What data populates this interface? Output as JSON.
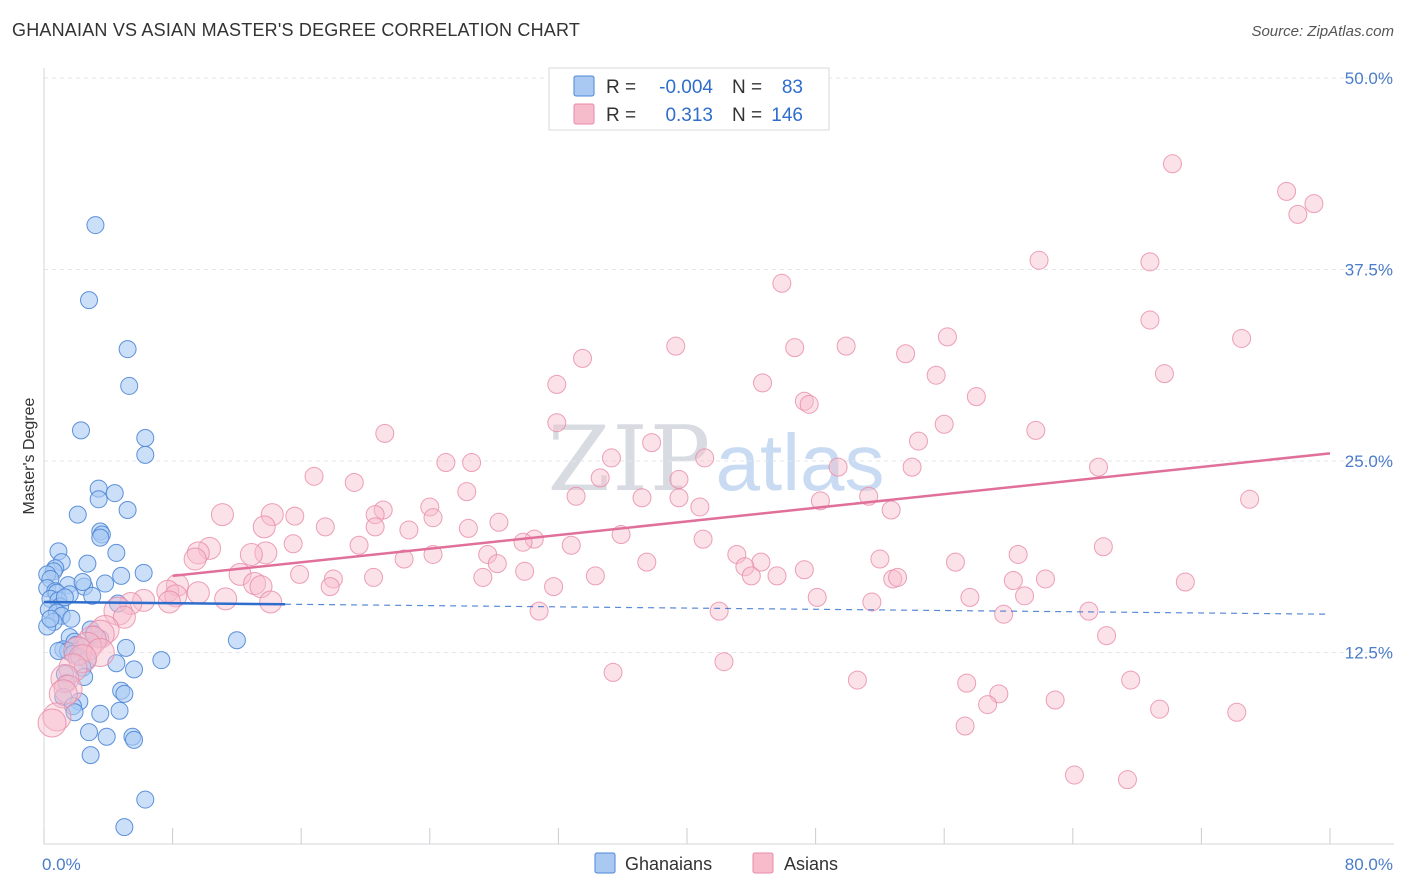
{
  "header": {
    "title": "GHANAIAN VS ASIAN MASTER'S DEGREE CORRELATION CHART",
    "source": "Source: ZipAtlas.com"
  },
  "watermark": {
    "zip": "ZIP",
    "atlas": "atlas"
  },
  "colors": {
    "ghanaian_fill": "#a9c9f3",
    "ghanaian_stroke": "#4e86d6",
    "ghanaian_line": "#2f6dcc",
    "asian_fill": "#f7bccc",
    "asian_stroke": "#e98aa8",
    "asian_line": "#e0709a",
    "tick": "#4a7cc9"
  },
  "legend": {
    "r_label": "R =",
    "n_label": "N =",
    "ghanaian_r": "-0.004",
    "ghanaian_n": "83",
    "asian_r": "0.313",
    "asian_n": "146"
  },
  "chart_data": {
    "type": "scatter",
    "title": "GHANAIAN VS ASIAN MASTER'S DEGREE CORRELATION CHART",
    "xlabel": "",
    "ylabel": "Master's Degree",
    "xlim": [
      0,
      80
    ],
    "ylim": [
      0,
      50
    ],
    "x_tick_labels": [
      "0.0%",
      "80.0%"
    ],
    "y_tick_labels": [
      "12.5%",
      "25.0%",
      "37.5%",
      "50.0%"
    ],
    "y_ticks": [
      12.5,
      25.0,
      37.5,
      50.0
    ],
    "legend_position": "top-center",
    "bottom_legend": [
      "Ghanaians",
      "Asians"
    ],
    "series": [
      {
        "name": "Ghanaians",
        "trend": {
          "x0": 0,
          "y0": 15.8,
          "x1": 80,
          "y1": 15.0,
          "solid_until": 15
        },
        "points": [
          [
            3.2,
            40.4
          ],
          [
            2.8,
            35.5
          ],
          [
            5.2,
            32.3
          ],
          [
            5.3,
            29.9
          ],
          [
            2.3,
            27.0
          ],
          [
            6.3,
            26.5
          ],
          [
            6.3,
            25.4
          ],
          [
            3.4,
            23.2
          ],
          [
            4.4,
            22.9
          ],
          [
            3.4,
            22.5
          ],
          [
            5.2,
            21.8
          ],
          [
            2.1,
            21.5
          ],
          [
            3.5,
            20.4
          ],
          [
            3.6,
            20.2
          ],
          [
            3.5,
            20.0
          ],
          [
            0.9,
            19.1
          ],
          [
            4.5,
            19.0
          ],
          [
            1.1,
            18.4
          ],
          [
            2.7,
            18.3
          ],
          [
            0.7,
            18.0
          ],
          [
            0.6,
            17.8
          ],
          [
            0.2,
            17.6
          ],
          [
            4.8,
            17.5
          ],
          [
            6.2,
            17.7
          ],
          [
            0.4,
            17.3
          ],
          [
            3.8,
            17.0
          ],
          [
            1.5,
            16.9
          ],
          [
            2.5,
            16.8
          ],
          [
            0.2,
            16.7
          ],
          [
            0.7,
            16.5
          ],
          [
            0.8,
            16.4
          ],
          [
            1.6,
            16.3
          ],
          [
            3.0,
            16.2
          ],
          [
            0.4,
            16.0
          ],
          [
            0.9,
            15.9
          ],
          [
            4.6,
            15.7
          ],
          [
            1.0,
            15.5
          ],
          [
            0.3,
            15.3
          ],
          [
            0.8,
            15.1
          ],
          [
            1.1,
            14.9
          ],
          [
            1.7,
            14.7
          ],
          [
            0.6,
            14.5
          ],
          [
            0.2,
            14.2
          ],
          [
            2.9,
            14.0
          ],
          [
            1.6,
            13.5
          ],
          [
            3.5,
            13.4
          ],
          [
            1.9,
            13.2
          ],
          [
            2.0,
            13.0
          ],
          [
            2.5,
            12.9
          ],
          [
            5.1,
            12.8
          ],
          [
            1.2,
            12.7
          ],
          [
            1.5,
            12.6
          ],
          [
            0.9,
            12.6
          ],
          [
            1.8,
            12.4
          ],
          [
            2.2,
            12.2
          ],
          [
            2.7,
            12.0
          ],
          [
            4.5,
            11.8
          ],
          [
            7.3,
            12.0
          ],
          [
            2.4,
            11.5
          ],
          [
            5.6,
            11.4
          ],
          [
            1.3,
            11.1
          ],
          [
            2.5,
            10.9
          ],
          [
            1.4,
            10.5
          ],
          [
            4.8,
            10.0
          ],
          [
            5.0,
            9.8
          ],
          [
            1.2,
            9.6
          ],
          [
            2.2,
            9.3
          ],
          [
            1.8,
            9.0
          ],
          [
            4.7,
            8.7
          ],
          [
            1.9,
            8.6
          ],
          [
            3.5,
            8.5
          ],
          [
            12.0,
            13.3
          ],
          [
            2.8,
            7.3
          ],
          [
            3.9,
            7.0
          ],
          [
            5.5,
            7.0
          ],
          [
            5.6,
            6.8
          ],
          [
            2.9,
            5.8
          ],
          [
            6.3,
            2.9
          ],
          [
            5.0,
            1.1
          ],
          [
            0.4,
            14.7
          ],
          [
            1.3,
            16.1
          ],
          [
            2.4,
            17.1
          ],
          [
            3.1,
            13.7
          ]
        ]
      },
      {
        "name": "Asians",
        "trend": {
          "x0": 8,
          "y0": 17.5,
          "x1": 80,
          "y1": 25.5
        },
        "points": [
          [
            70.2,
            44.4
          ],
          [
            77.3,
            42.6
          ],
          [
            79.0,
            41.8
          ],
          [
            78.0,
            41.1
          ],
          [
            61.9,
            38.1
          ],
          [
            68.8,
            38.0
          ],
          [
            45.9,
            36.6
          ],
          [
            68.8,
            34.2
          ],
          [
            74.5,
            33.0
          ],
          [
            56.2,
            33.1
          ],
          [
            39.3,
            32.5
          ],
          [
            46.7,
            32.4
          ],
          [
            49.9,
            32.5
          ],
          [
            53.6,
            32.0
          ],
          [
            33.5,
            31.7
          ],
          [
            55.5,
            30.6
          ],
          [
            69.7,
            30.7
          ],
          [
            44.7,
            30.1
          ],
          [
            31.9,
            30.0
          ],
          [
            58.0,
            29.2
          ],
          [
            47.3,
            28.9
          ],
          [
            47.6,
            28.7
          ],
          [
            31.9,
            27.5
          ],
          [
            56.0,
            27.4
          ],
          [
            61.7,
            27.0
          ],
          [
            21.2,
            26.8
          ],
          [
            54.4,
            26.3
          ],
          [
            37.8,
            26.2
          ],
          [
            35.3,
            25.2
          ],
          [
            41.1,
            25.2
          ],
          [
            25.0,
            24.9
          ],
          [
            26.6,
            24.9
          ],
          [
            49.4,
            24.6
          ],
          [
            65.6,
            24.6
          ],
          [
            54.0,
            24.6
          ],
          [
            34.6,
            23.9
          ],
          [
            39.5,
            23.8
          ],
          [
            16.8,
            24.0
          ],
          [
            19.3,
            23.6
          ],
          [
            26.3,
            23.0
          ],
          [
            33.1,
            22.7
          ],
          [
            37.2,
            22.6
          ],
          [
            39.5,
            22.6
          ],
          [
            48.3,
            22.4
          ],
          [
            40.8,
            22.0
          ],
          [
            24.0,
            22.0
          ],
          [
            51.3,
            22.7
          ],
          [
            75.0,
            22.5
          ],
          [
            52.7,
            21.8
          ],
          [
            21.1,
            21.8
          ],
          [
            20.6,
            21.5
          ],
          [
            11.1,
            21.5
          ],
          [
            14.2,
            21.5
          ],
          [
            15.6,
            21.4
          ],
          [
            24.2,
            21.3
          ],
          [
            28.3,
            21.0
          ],
          [
            17.5,
            20.7
          ],
          [
            20.6,
            20.7
          ],
          [
            13.7,
            20.7
          ],
          [
            22.7,
            20.5
          ],
          [
            26.4,
            20.6
          ],
          [
            35.9,
            20.2
          ],
          [
            41.0,
            19.9
          ],
          [
            30.5,
            19.9
          ],
          [
            29.8,
            19.7
          ],
          [
            15.5,
            19.6
          ],
          [
            19.6,
            19.5
          ],
          [
            32.8,
            19.5
          ],
          [
            65.9,
            19.4
          ],
          [
            10.3,
            19.3
          ],
          [
            9.6,
            19.0
          ],
          [
            13.8,
            19.0
          ],
          [
            12.9,
            18.9
          ],
          [
            27.6,
            18.9
          ],
          [
            24.2,
            18.9
          ],
          [
            43.1,
            18.9
          ],
          [
            60.6,
            18.9
          ],
          [
            9.4,
            18.6
          ],
          [
            52.0,
            18.6
          ],
          [
            22.4,
            18.6
          ],
          [
            37.5,
            18.4
          ],
          [
            56.7,
            18.4
          ],
          [
            28.2,
            18.3
          ],
          [
            44.6,
            18.4
          ],
          [
            43.6,
            18.1
          ],
          [
            47.3,
            17.9
          ],
          [
            29.9,
            17.8
          ],
          [
            15.9,
            17.6
          ],
          [
            12.2,
            17.6
          ],
          [
            44.0,
            17.5
          ],
          [
            45.6,
            17.5
          ],
          [
            34.3,
            17.5
          ],
          [
            27.3,
            17.4
          ],
          [
            20.5,
            17.4
          ],
          [
            52.8,
            17.3
          ],
          [
            53.1,
            17.4
          ],
          [
            60.3,
            17.2
          ],
          [
            18.0,
            17.3
          ],
          [
            62.3,
            17.3
          ],
          [
            71.0,
            17.1
          ],
          [
            13.1,
            17.0
          ],
          [
            8.3,
            16.9
          ],
          [
            17.8,
            16.8
          ],
          [
            31.7,
            16.8
          ],
          [
            7.7,
            16.5
          ],
          [
            13.5,
            16.8
          ],
          [
            9.6,
            16.4
          ],
          [
            8.2,
            16.2
          ],
          [
            57.6,
            16.1
          ],
          [
            11.3,
            16.0
          ],
          [
            7.8,
            15.8
          ],
          [
            61.0,
            16.2
          ],
          [
            48.1,
            16.1
          ],
          [
            51.5,
            15.8
          ],
          [
            14.1,
            15.8
          ],
          [
            6.2,
            15.9
          ],
          [
            5.4,
            15.7
          ],
          [
            30.8,
            15.2
          ],
          [
            42.0,
            15.2
          ],
          [
            59.7,
            15.0
          ],
          [
            65.0,
            15.2
          ],
          [
            4.6,
            15.2
          ],
          [
            5.0,
            14.8
          ],
          [
            3.8,
            14.0
          ],
          [
            3.5,
            13.7
          ],
          [
            3.0,
            13.3
          ],
          [
            66.1,
            13.6
          ],
          [
            2.7,
            12.9
          ],
          [
            2.1,
            12.6
          ],
          [
            3.5,
            12.5
          ],
          [
            2.4,
            12.1
          ],
          [
            42.3,
            11.9
          ],
          [
            35.4,
            11.2
          ],
          [
            1.8,
            11.5
          ],
          [
            50.6,
            10.7
          ],
          [
            1.3,
            10.8
          ],
          [
            57.4,
            10.5
          ],
          [
            67.6,
            10.7
          ],
          [
            1.5,
            10.1
          ],
          [
            59.4,
            9.8
          ],
          [
            62.9,
            9.4
          ],
          [
            58.7,
            9.1
          ],
          [
            1.2,
            9.8
          ],
          [
            0.8,
            8.3
          ],
          [
            69.4,
            8.8
          ],
          [
            74.2,
            8.6
          ],
          [
            57.3,
            7.7
          ],
          [
            64.1,
            4.5
          ],
          [
            67.4,
            4.2
          ],
          [
            0.5,
            7.9
          ]
        ]
      }
    ]
  }
}
